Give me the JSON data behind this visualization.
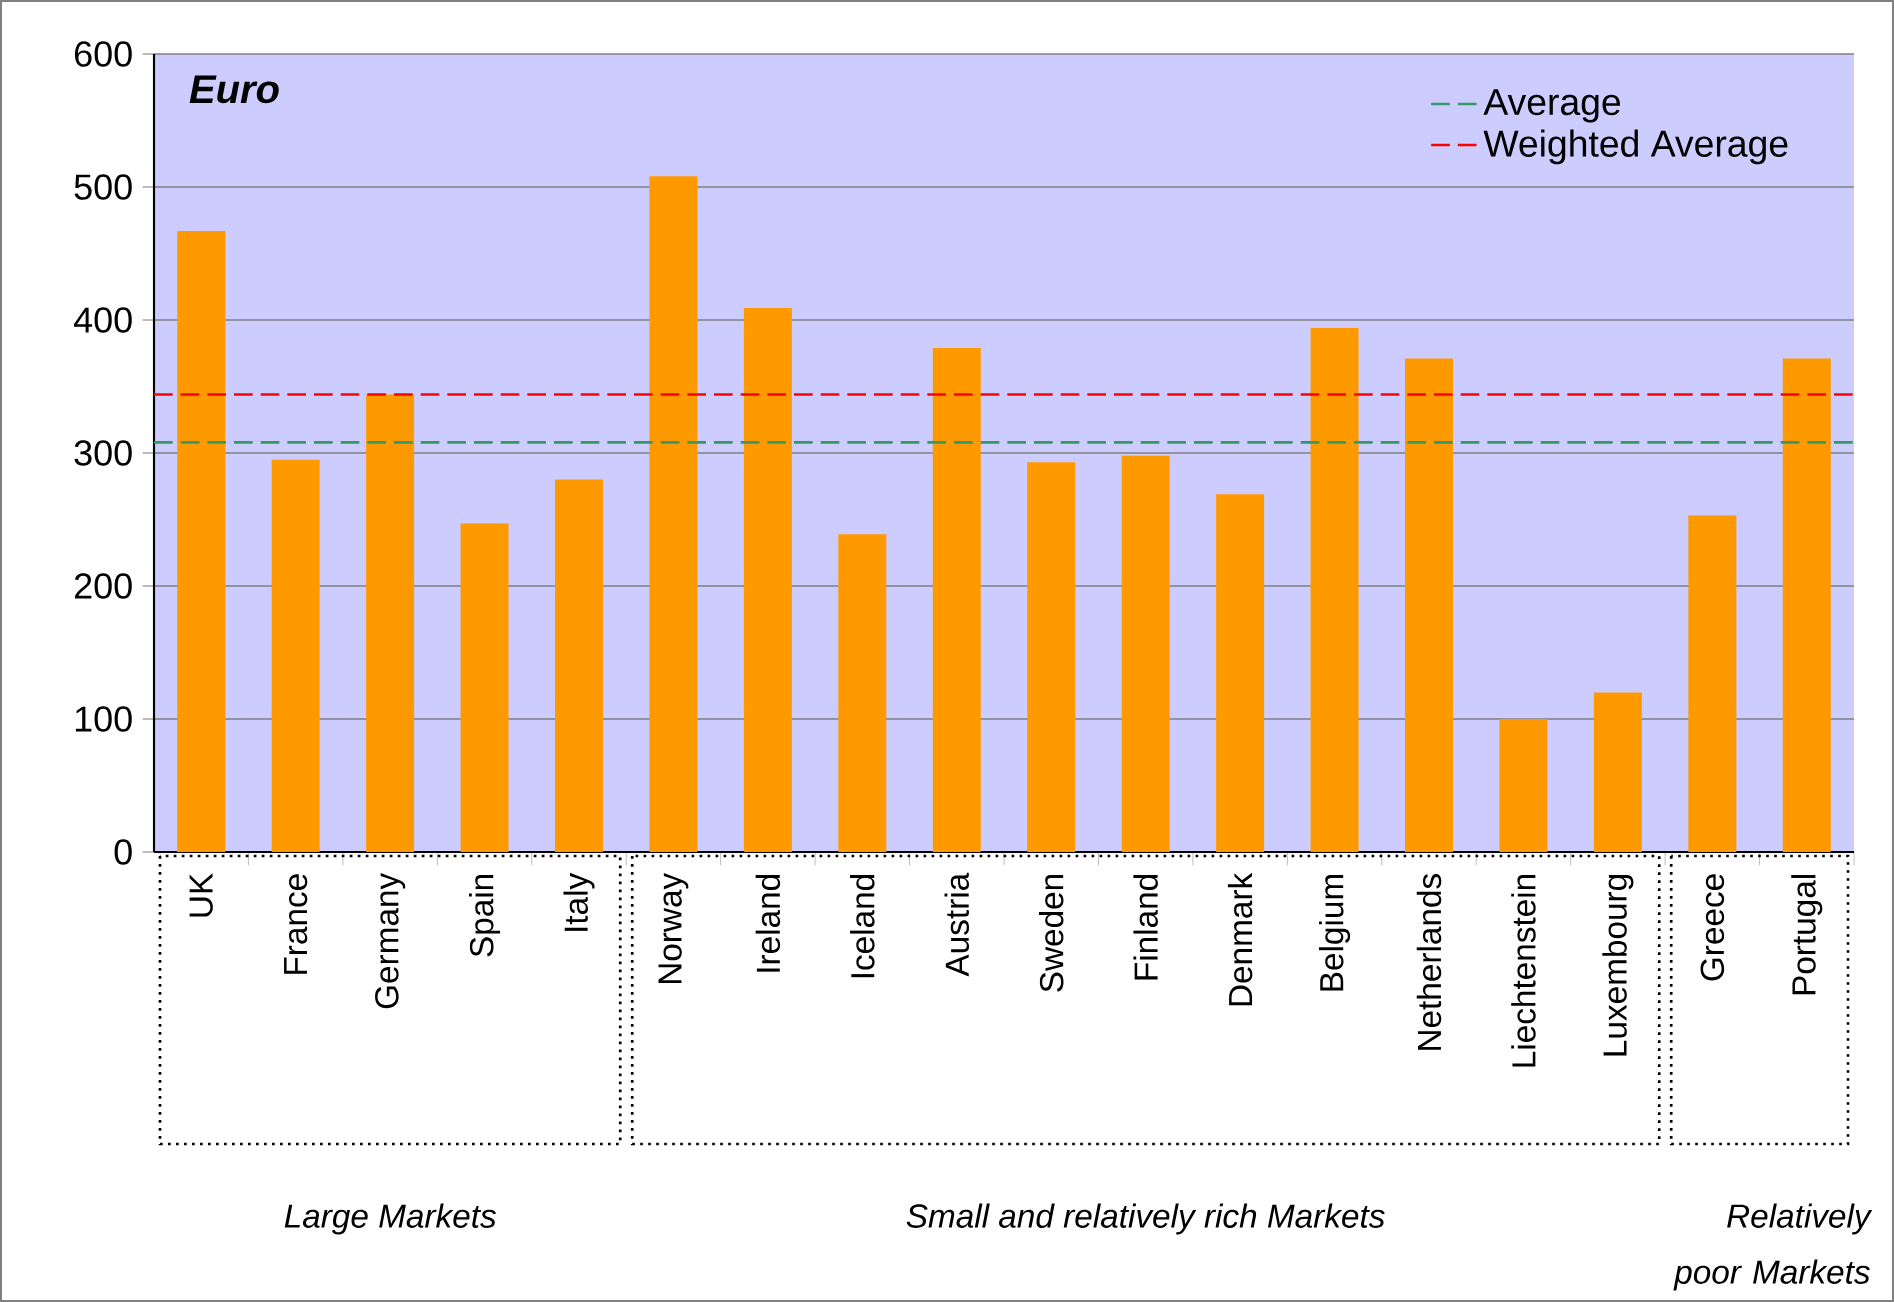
{
  "chart_data": {
    "type": "bar",
    "title": "Euro",
    "categories": [
      "UK",
      "France",
      "Germany",
      "Spain",
      "Italy",
      "Norway",
      "Ireland",
      "Iceland",
      "Austria",
      "Sweden",
      "Finland",
      "Denmark",
      "Belgium",
      "Netherlands",
      "Liechtenstein",
      "Luxembourg",
      "Greece",
      "Portugal"
    ],
    "values": [
      467,
      295,
      344,
      247,
      280,
      508,
      409,
      239,
      379,
      293,
      298,
      269,
      394,
      371,
      100,
      120,
      253,
      371
    ],
    "color": "#ff9900",
    "ylim": [
      0,
      600
    ],
    "yticks": [
      0,
      100,
      200,
      300,
      400,
      500,
      600
    ],
    "grid": "y",
    "legend": "top right",
    "ref_lines": [
      {
        "axis": "y",
        "value": 308,
        "label": "Average",
        "color": "#339966",
        "line_style": "dashed"
      },
      {
        "axis": "y",
        "value": 344,
        "label": "Weighted Average",
        "color": "#ff0000",
        "line_style": "dashed"
      }
    ],
    "annotations": [
      "Large Markets",
      "Small and relatively rich Markets",
      "Relatively poor Markets"
    ]
  }
}
